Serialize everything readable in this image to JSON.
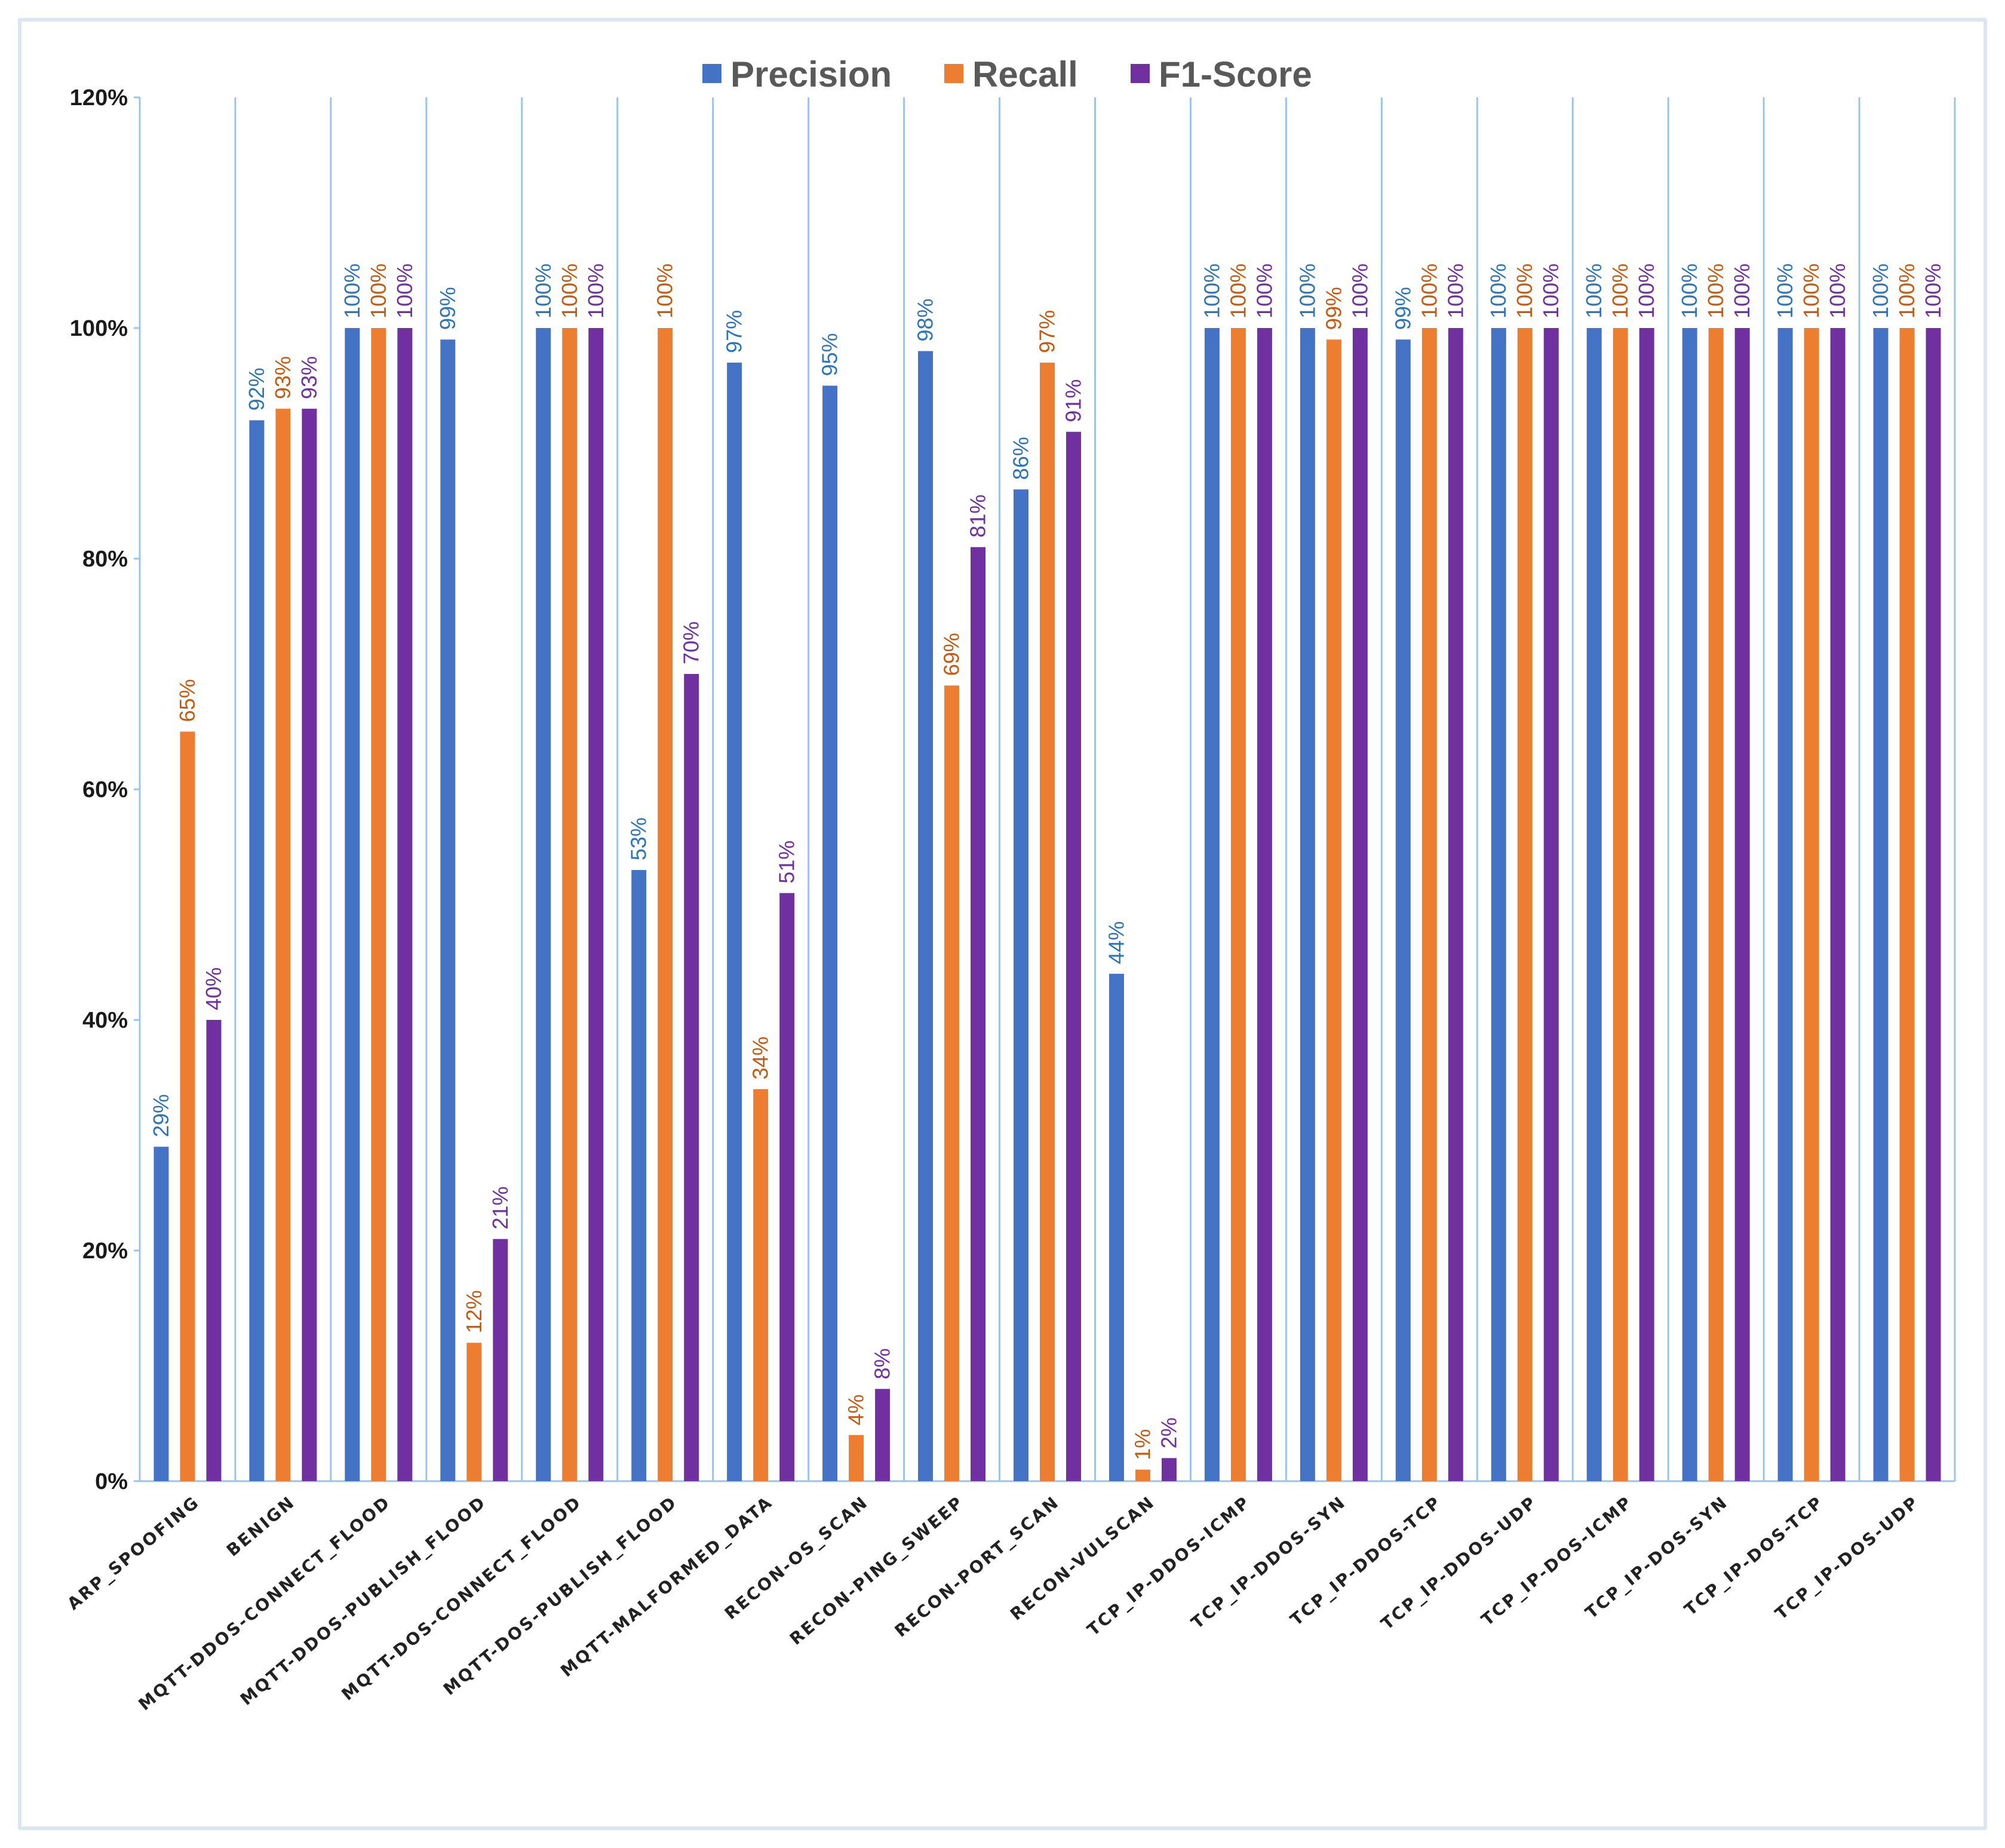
{
  "chart_data": {
    "type": "bar",
    "title": "",
    "xlabel": "",
    "ylabel": "",
    "ylim": [
      0,
      120
    ],
    "y_ticks": [
      0,
      20,
      40,
      60,
      80,
      100,
      120
    ],
    "y_tick_labels": [
      "0%",
      "20%",
      "40%",
      "60%",
      "80%",
      "100%",
      "120%"
    ],
    "grid": "vertical separators between categories",
    "legend_position": "top-center",
    "categories": [
      "ARP_SPOOFING",
      "BENIGN",
      "MQTT-DDOS-CONNECT_FLOOD",
      "MQTT-DDOS-PUBLISH_FLOOD",
      "MQTT-DOS-CONNECT_FLOOD",
      "MQTT-DOS-PUBLISH_FLOOD",
      "MQTT-MALFORMED_DATA",
      "RECON-OS_SCAN",
      "RECON-PING_SWEEP",
      "RECON-PORT_SCAN",
      "RECON-VULSCAN",
      "TCP_IP-DDOS-ICMP",
      "TCP_IP-DDOS-SYN",
      "TCP_IP-DDOS-TCP",
      "TCP_IP-DDOS-UDP",
      "TCP_IP-DOS-ICMP",
      "TCP_IP-DOS-SYN",
      "TCP_IP-DOS-TCP",
      "TCP_IP-DOS-UDP"
    ],
    "series": [
      {
        "name": "Precision",
        "color": "#4472c4",
        "label_color": "#2e75b6",
        "values": [
          29,
          92,
          100,
          99,
          100,
          53,
          97,
          95,
          98,
          86,
          44,
          100,
          100,
          99,
          100,
          100,
          100,
          100,
          100
        ],
        "labels": [
          "29%",
          "92%",
          "100%",
          "99%",
          "100%",
          "53%",
          "97%",
          "95%",
          "98%",
          "86%",
          "44%",
          "100%",
          "100%",
          "99%",
          "100%",
          "100%",
          "100%",
          "100%",
          "100%"
        ]
      },
      {
        "name": "Recall",
        "color": "#ed7d31",
        "label_color": "#c55a11",
        "values": [
          65,
          93,
          100,
          12,
          100,
          100,
          34,
          4,
          69,
          97,
          1,
          100,
          99,
          100,
          100,
          100,
          100,
          100,
          100
        ],
        "labels": [
          "65%",
          "93%",
          "100%",
          "12%",
          "100%",
          "100%",
          "34%",
          "4%",
          "69%",
          "97%",
          "1%",
          "100%",
          "99%",
          "100%",
          "100%",
          "100%",
          "100%",
          "100%",
          "100%"
        ]
      },
      {
        "name": "F1-Score",
        "color": "#7030a0",
        "label_color": "#7030a0",
        "values": [
          40,
          93,
          100,
          21,
          100,
          70,
          51,
          8,
          81,
          91,
          2,
          100,
          100,
          100,
          100,
          100,
          100,
          100,
          100
        ],
        "labels": [
          "40%",
          "93%",
          "100%",
          "21%",
          "100%",
          "70%",
          "51%",
          "8%",
          "81%",
          "91%",
          "2%",
          "100%",
          "100%",
          "100%",
          "100%",
          "100%",
          "100%",
          "100%",
          "100%"
        ]
      }
    ]
  }
}
